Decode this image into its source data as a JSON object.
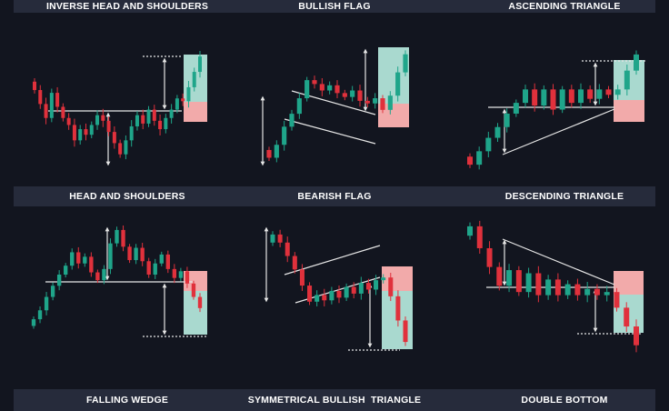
{
  "colors": {
    "background": "#12151f",
    "band": "#262b3b",
    "bullish_candle": "#1fa58a",
    "bearish_candle": "#e0313c",
    "target_zone": "#a9d9cf",
    "stop_zone": "#f2aaaa",
    "line": "#e6e6e6"
  },
  "labels": {
    "row1": [
      "INVERSE HEAD AND SHOULDERS",
      "BULLISH FLAG",
      "ASCENDING TRIANGLE"
    ],
    "row2": [
      "HEAD AND SHOULDERS",
      "BEARISH FLAG",
      "DESCENDING TRIANGLE"
    ],
    "row3": [
      "FALLING WEDGE",
      "SYMMETRICAL BULLISH  TRIANGLE",
      "DOUBLE BOTTOM"
    ]
  },
  "chart_data": [
    {
      "type": "candlestick",
      "pattern": "Inverse Head and Shoulders",
      "direction": "bullish",
      "close": [
        6,
        5,
        4,
        5.8,
        4.8,
        4,
        3.5,
        2.4,
        3.2,
        2.8,
        3.5,
        4.2,
        3.8,
        3,
        2.2,
        1.4,
        2.4,
        3.4,
        4.2,
        3.6,
        4.6,
        3.8,
        3.2,
        4,
        4.6,
        5.4,
        5.2,
        6.2,
        7.3,
        8.4
      ]
    },
    {
      "type": "candlestick",
      "pattern": "Bullish Flag",
      "direction": "bullish",
      "close": [
        1,
        2,
        3.4,
        4.4,
        5.6,
        7,
        6.7,
        6.2,
        6.6,
        6,
        5.7,
        6.2,
        5.4,
        5.2,
        5.6,
        4.7,
        5.8,
        7.6,
        9
      ]
    },
    {
      "type": "candlestick",
      "pattern": "Ascending Triangle",
      "direction": "bullish",
      "close": [
        1,
        2,
        3,
        3.8,
        4.8,
        5.6,
        6.6,
        5.4,
        6.6,
        5.1,
        6.6,
        5.6,
        6.6,
        5.9,
        6.6,
        6.2,
        6.6,
        8,
        9.2
      ]
    },
    {
      "type": "candlestick",
      "pattern": "Head and Shoulders",
      "direction": "bearish",
      "close": [
        1,
        1.8,
        3,
        4,
        5,
        5.8,
        7,
        6,
        6.6,
        5.2,
        4.5,
        5.5,
        7.8,
        9,
        7.5,
        6.3,
        7.4,
        6.2,
        5,
        6,
        6.8,
        5.5,
        4.7,
        5.3,
        4.2,
        3,
        2
      ]
    },
    {
      "type": "candlestick",
      "pattern": "Bearish Flag",
      "direction": "bearish",
      "close": [
        9,
        8.4,
        7.4,
        6.4,
        5.2,
        4,
        4.5,
        4.1,
        4.8,
        4.3,
        5.1,
        4.6,
        5.4,
        4.9,
        5.6,
        5.8,
        4.4,
        2.6,
        1
      ]
    },
    {
      "type": "candlestick",
      "pattern": "Descending Triangle",
      "direction": "bearish",
      "close": [
        9,
        7.6,
        6.4,
        5.2,
        6.2,
        4.8,
        6,
        4.6,
        5.6,
        4.6,
        5.3,
        4.6,
        5,
        4.6,
        4.8,
        3.8,
        2.6,
        1.4
      ]
    }
  ]
}
